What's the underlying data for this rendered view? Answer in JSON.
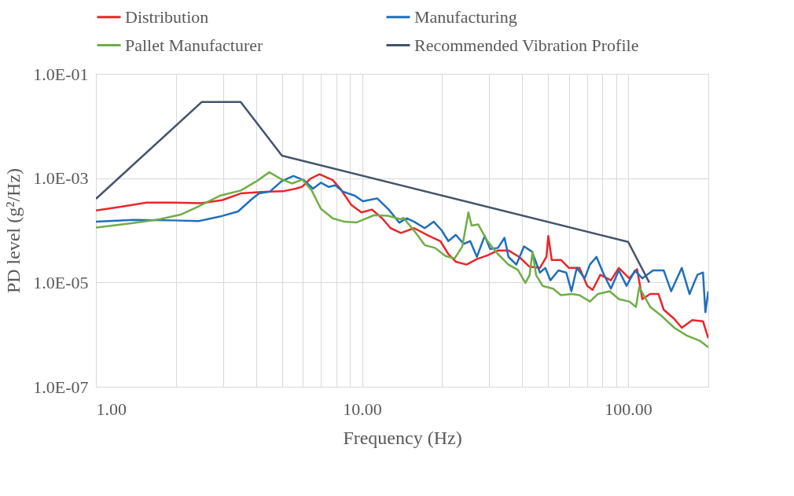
{
  "chart_data": {
    "type": "line",
    "xlabel": "Frequency (Hz)",
    "ylabel": "PD level (g²/Hz)",
    "log": "xy",
    "grid": true,
    "legend": "top",
    "marker": "none",
    "line_style": "solid",
    "xlim": [
      1,
      200
    ],
    "ylim": [
      1e-07,
      0.1
    ],
    "xticks": [
      {
        "value": 1,
        "label": "1.00"
      },
      {
        "value": 2,
        "label": null
      },
      {
        "value": 3,
        "label": null
      },
      {
        "value": 4,
        "label": null
      },
      {
        "value": 5,
        "label": null
      },
      {
        "value": 6,
        "label": null
      },
      {
        "value": 7,
        "label": null
      },
      {
        "value": 8,
        "label": null
      },
      {
        "value": 9,
        "label": null
      },
      {
        "value": 10,
        "label": "10.00"
      },
      {
        "value": 20,
        "label": null
      },
      {
        "value": 30,
        "label": null
      },
      {
        "value": 40,
        "label": null
      },
      {
        "value": 50,
        "label": null
      },
      {
        "value": 60,
        "label": null
      },
      {
        "value": 70,
        "label": null
      },
      {
        "value": 80,
        "label": null
      },
      {
        "value": 90,
        "label": null
      },
      {
        "value": 100,
        "label": "100.00"
      },
      {
        "value": 200,
        "label": null
      }
    ],
    "yticks": [
      {
        "value": 1e-07,
        "label": "1.0E-07"
      },
      {
        "value": 1e-05,
        "label": "1.0E-05"
      },
      {
        "value": 0.001,
        "label": "1.0E-03"
      },
      {
        "value": 0.1,
        "label": "1.0E-01"
      }
    ],
    "series": [
      {
        "name": "Distribution",
        "color": "#e8262a",
        "x": [
          1.0,
          1.23,
          1.55,
          1.94,
          2.49,
          2.99,
          3.5,
          4.3,
          5.04,
          5.64,
          5.97,
          6.4,
          6.92,
          7.76,
          8.3,
          9.1,
          9.95,
          10.9,
          11.9,
          12.8,
          14.0,
          15.7,
          17.6,
          19.7,
          21.1,
          22.5,
          24.7,
          27.0,
          29.6,
          32.4,
          35.5,
          38.9,
          42.6,
          46.6,
          49.3,
          50.1,
          51.6,
          55.9,
          59.9,
          65.6,
          70.2,
          73.5,
          78.6,
          86.1,
          92.2,
          101,
          108,
          113,
          121,
          130,
          136,
          149,
          159,
          174,
          191,
          200
        ],
        "values": [
          0.00024,
          0.00028,
          0.00034,
          0.00034,
          0.00033,
          0.00038,
          0.00051,
          0.00055,
          0.00056,
          0.00063,
          0.00069,
          0.00098,
          0.00119,
          0.00092,
          0.00062,
          0.00031,
          0.00022,
          0.00025,
          0.00017,
          0.00011,
          8.9e-05,
          0.00011,
          8.1e-05,
          6.2e-05,
          3.5e-05,
          2.5e-05,
          2.2e-05,
          2.8e-05,
          3.3e-05,
          4.1e-05,
          4.1e-05,
          3.1e-05,
          2e-05,
          1.9e-05,
          3.1e-05,
          7.8e-05,
          2.7e-05,
          2.7e-05,
          1.9e-05,
          1.9e-05,
          8.6e-06,
          7.2e-06,
          1.4e-05,
          1.1e-05,
          1.9e-05,
          1.2e-05,
          1.8e-05,
          4.8e-06,
          6e-06,
          6e-06,
          3e-06,
          2e-06,
          1.35e-06,
          1.9e-06,
          1.8e-06,
          8.5e-07
        ]
      },
      {
        "name": "Manufacturing",
        "color": "#1f6fba",
        "x": [
          1.0,
          1.38,
          1.94,
          2.44,
          2.92,
          3.42,
          3.84,
          4.1,
          4.5,
          4.98,
          5.52,
          6.04,
          6.54,
          7.0,
          7.5,
          7.93,
          8.49,
          9.4,
          10.07,
          11.4,
          12.6,
          13.8,
          14.7,
          15.7,
          17.2,
          18.6,
          19.9,
          21.1,
          22.5,
          24.1,
          25.5,
          27.0,
          28.9,
          30.3,
          32.4,
          34.3,
          35.5,
          38.0,
          40.6,
          43.5,
          46.6,
          48.8,
          51.0,
          54.7,
          58.5,
          61.2,
          64.1,
          68.6,
          71.8,
          76.0,
          80.4,
          86.1,
          92.2,
          98.6,
          106,
          113,
          124,
          136,
          145,
          159,
          170,
          182,
          191,
          195,
          200
        ],
        "values": [
          0.000146,
          0.000158,
          0.000155,
          0.000151,
          0.000183,
          0.00023,
          0.00039,
          0.00051,
          0.00055,
          0.00087,
          0.0011,
          0.00092,
          0.00063,
          0.00082,
          0.00068,
          0.00073,
          0.00055,
          0.00046,
          0.00036,
          0.00041,
          0.00025,
          0.00014,
          0.00017,
          0.000146,
          0.00011,
          0.000146,
          0.0001,
          6.2e-05,
          8.2e-05,
          5.5e-05,
          6.2e-05,
          3.1e-05,
          7.8e-05,
          4.4e-05,
          4.6e-05,
          7.2e-05,
          3.1e-05,
          2.2e-05,
          4.9e-05,
          3.9e-05,
          1.55e-05,
          1.9e-05,
          1.1e-05,
          1.7e-05,
          1.55e-05,
          6.8e-06,
          1.9e-05,
          1.2e-05,
          2.2e-05,
          3.1e-05,
          1.55e-05,
          7.6e-06,
          1.7e-05,
          8.6e-06,
          1.7e-05,
          1.2e-05,
          1.7e-05,
          1.7e-05,
          6.8e-06,
          1.9e-05,
          6e-06,
          1.4e-05,
          1.55e-05,
          2.7e-06,
          6.8e-06
        ]
      },
      {
        "name": "Pallet Manufacturer",
        "color": "#70ad47",
        "x": [
          1.0,
          1.38,
          1.73,
          2.08,
          2.44,
          2.92,
          3.5,
          4.01,
          4.48,
          4.93,
          5.45,
          5.97,
          6.47,
          7.0,
          7.76,
          8.59,
          9.51,
          10.2,
          11.1,
          12.5,
          14.0,
          14.3,
          15.7,
          17.2,
          18.8,
          20.6,
          22.3,
          23.8,
          25.1,
          25.8,
          27.3,
          29.6,
          32.4,
          35.5,
          38.5,
          41.1,
          42.6,
          43.7,
          45.1,
          47.7,
          52.2,
          55.9,
          61.2,
          65.6,
          71.8,
          76.9,
          85.2,
          92.2,
          101,
          107,
          110,
          121,
          132,
          149,
          166,
          186,
          200
        ],
        "values": [
          0.000113,
          0.000138,
          0.000163,
          0.0002,
          0.00029,
          0.00046,
          0.00058,
          0.00087,
          0.0013,
          0.00098,
          0.00079,
          0.00094,
          0.00058,
          0.00026,
          0.00017,
          0.000146,
          0.000141,
          0.000163,
          0.000195,
          0.00019,
          0.000163,
          0.000174,
          9.8e-05,
          5.2e-05,
          4.6e-05,
          3.2e-05,
          2.9e-05,
          4.9e-05,
          0.00022,
          0.000123,
          0.00013,
          6.2e-05,
          3.5e-05,
          2.2e-05,
          1.74e-05,
          9.8e-06,
          1.38e-05,
          3.9e-05,
          1.38e-05,
          8.6e-06,
          7.6e-06,
          5.7e-06,
          6e-06,
          5.7e-06,
          4.3e-06,
          6e-06,
          6.8e-06,
          4.8e-06,
          4.3e-06,
          3.4e-06,
          8.1e-06,
          3.4e-06,
          2.4e-06,
          1.35e-06,
          9.6e-07,
          7.6e-07,
          5.7e-07
        ]
      },
      {
        "name": "Recommended Vibration Profile",
        "color": "#44546a",
        "x": [
          1,
          2.5,
          3.5,
          5,
          100,
          120
        ],
        "values": [
          0.0004,
          0.029,
          0.029,
          0.0027,
          6e-05,
          1e-05
        ]
      }
    ]
  }
}
